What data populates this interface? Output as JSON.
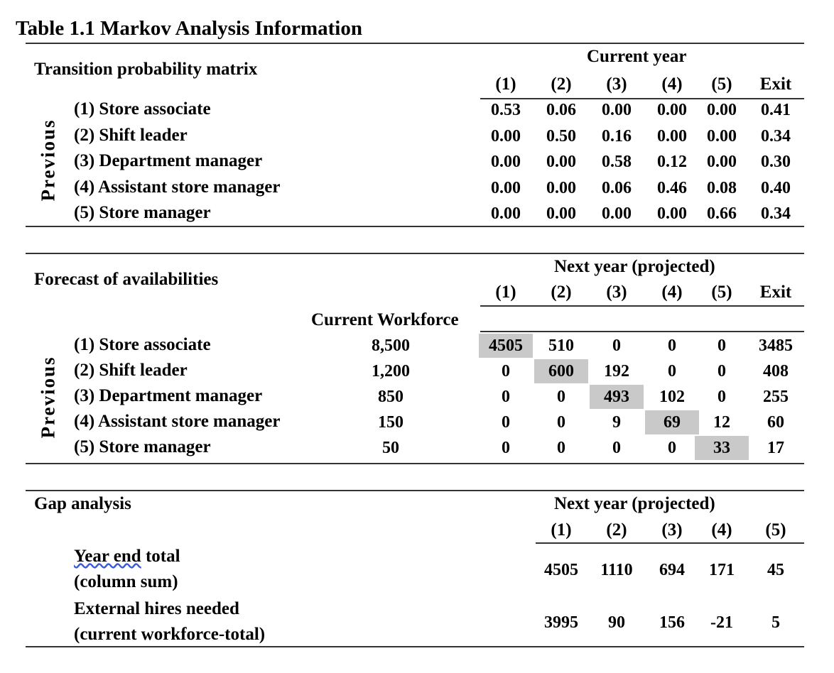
{
  "title": "Table 1.1 Markov Analysis Information",
  "transition": {
    "section_title": "Transition probability matrix",
    "group_header": "Current year",
    "side_label": "Previous",
    "columns": [
      "(1)",
      "(2)",
      "(3)",
      "(4)",
      "(5)",
      "Exit"
    ],
    "rows": [
      {
        "label": "(1) Store associate",
        "values": [
          "0.53",
          "0.06",
          "0.00",
          "0.00",
          "0.00",
          "0.41"
        ]
      },
      {
        "label": "(2) Shift leader",
        "values": [
          "0.00",
          "0.50",
          "0.16",
          "0.00",
          "0.00",
          "0.34"
        ]
      },
      {
        "label": "(3) Department manager",
        "values": [
          "0.00",
          "0.00",
          "0.58",
          "0.12",
          "0.00",
          "0.30"
        ]
      },
      {
        "label": "(4) Assistant store manager",
        "values": [
          "0.00",
          "0.00",
          "0.06",
          "0.46",
          "0.08",
          "0.40"
        ]
      },
      {
        "label": "(5) Store manager",
        "values": [
          "0.00",
          "0.00",
          "0.00",
          "0.00",
          "0.66",
          "0.34"
        ]
      }
    ]
  },
  "forecast": {
    "section_title": "Forecast of availabilities",
    "group_header": "Next year (projected)",
    "side_label": "Previous",
    "workforce_header": "Current Workforce",
    "columns": [
      "(1)",
      "(2)",
      "(3)",
      "(4)",
      "(5)",
      "Exit"
    ],
    "rows": [
      {
        "label": "(1) Store associate",
        "workforce": "8,500",
        "values": [
          "4505",
          "510",
          "0",
          "0",
          "0",
          "3485"
        ]
      },
      {
        "label": "(2) Shift leader",
        "workforce": "1,200",
        "values": [
          "0",
          "600",
          "192",
          "0",
          "0",
          "408"
        ]
      },
      {
        "label": "(3) Department manager",
        "workforce": "850",
        "values": [
          "0",
          "0",
          "493",
          "102",
          "0",
          "255"
        ]
      },
      {
        "label": "(4) Assistant store manager",
        "workforce": "150",
        "values": [
          "0",
          "0",
          "9",
          "69",
          "12",
          "60"
        ]
      },
      {
        "label": "(5) Store manager",
        "workforce": "50",
        "values": [
          "0",
          "0",
          "0",
          "0",
          "33",
          "17"
        ]
      }
    ],
    "highlight_color": "#c9c9c9"
  },
  "gap": {
    "section_title": "Gap analysis",
    "group_header": "Next year (projected)",
    "columns": [
      "(1)",
      "(2)",
      "(3)",
      "(4)",
      "(5)"
    ],
    "rows": [
      {
        "label_line1_a": "Year end",
        "label_line1_b": " total",
        "label_line2": "(column sum)",
        "values": [
          "4505",
          "1110",
          "694",
          "171",
          "45"
        ]
      },
      {
        "label_line1_a": "External hires needed",
        "label_line1_b": "",
        "label_line2": "(current workforce-total)",
        "values": [
          "3995",
          "90",
          "156",
          "-21",
          "5"
        ]
      }
    ]
  }
}
